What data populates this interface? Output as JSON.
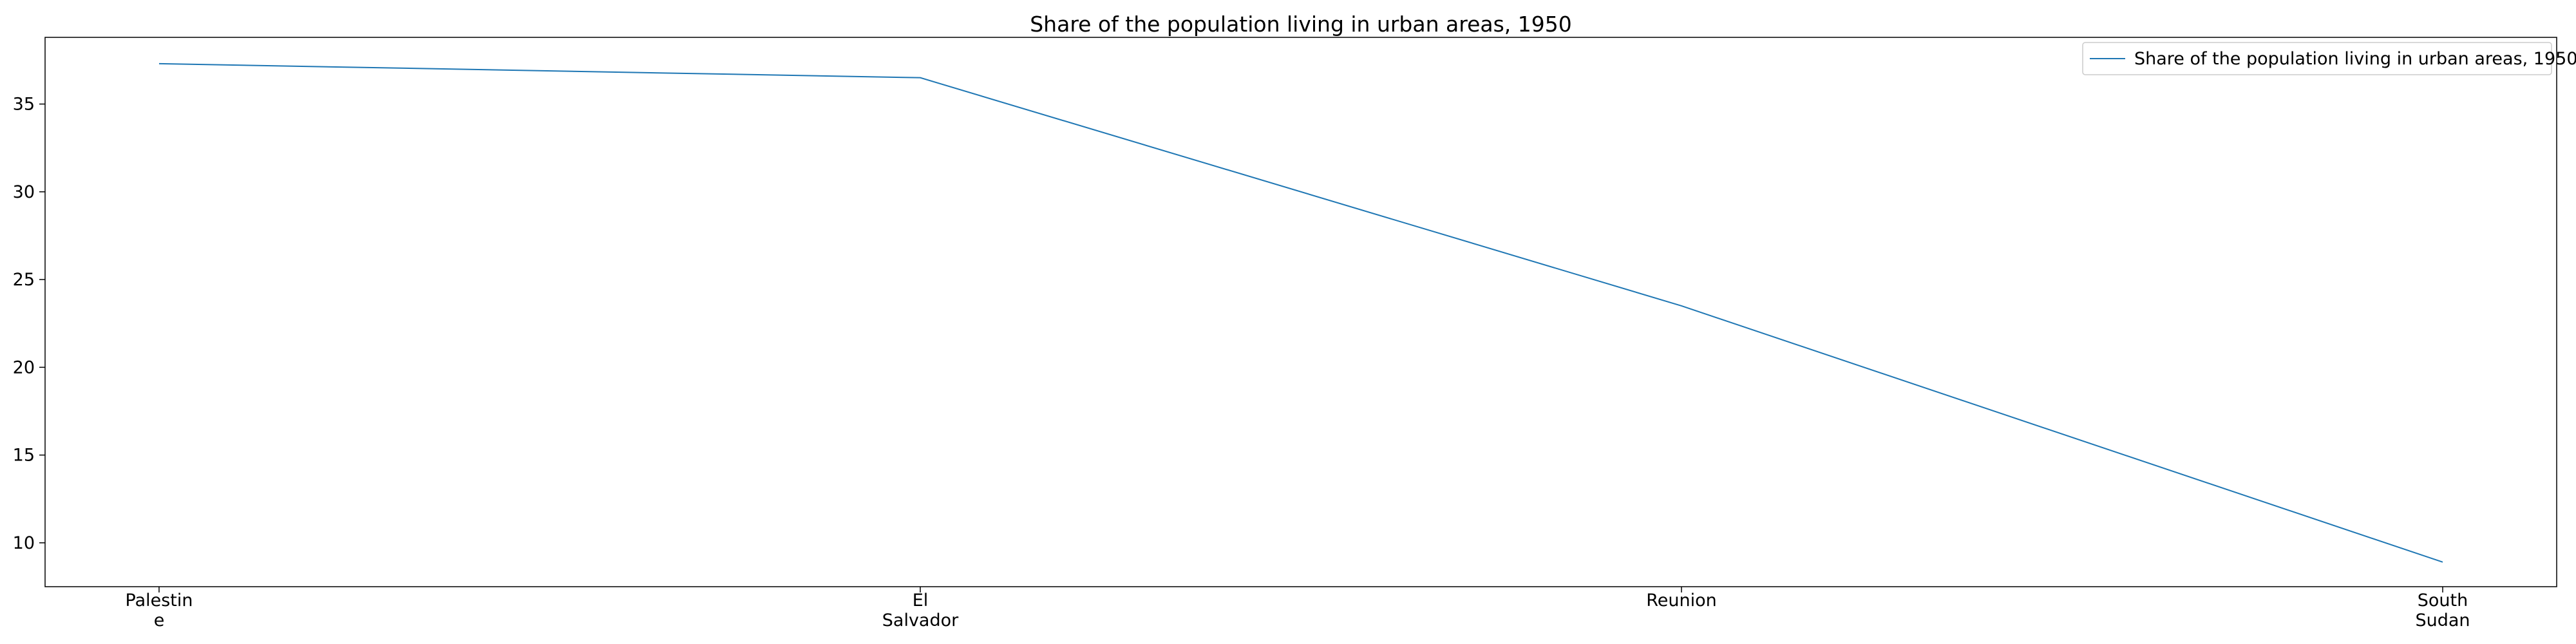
{
  "chart_data": {
    "type": "line",
    "title": "Share of the population living in urban areas, 1950",
    "xlabel": "",
    "ylabel": "",
    "categories": [
      [
        "Palestin",
        "e"
      ],
      [
        "El",
        "Salvador"
      ],
      [
        "Reunion"
      ],
      [
        "South",
        "Sudan"
      ]
    ],
    "series": [
      {
        "name": "Share of the population living in urban areas, 1950",
        "values": [
          37.3,
          36.5,
          23.5,
          8.9
        ],
        "color": "#1f77b4"
      }
    ],
    "ylim": [
      7.5,
      38.8
    ],
    "yticks": [
      10,
      15,
      20,
      25,
      30,
      35
    ],
    "grid": false,
    "legend": "top-right"
  }
}
